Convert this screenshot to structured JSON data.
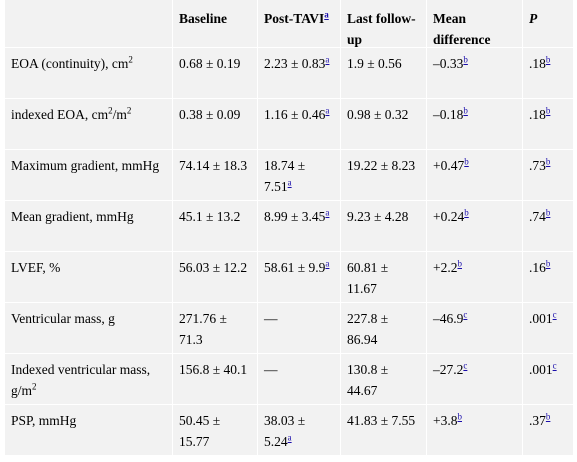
{
  "headers": [
    "",
    "Baseline",
    "Post-TAVI",
    "Last follow-up",
    "Mean difference",
    "P"
  ],
  "header_post_tavi_note": "a",
  "rows": [
    {
      "label": "EOA (continuity), cm",
      "label_sup": "2",
      "label_after": "",
      "baseline": "0.68 ± 0.19",
      "post": "2.23 ± 0.83",
      "post_note": "a",
      "last": "1.9 ± 0.56",
      "diff": "–0.33",
      "diff_note": "b",
      "p": ".18",
      "p_note": "b"
    },
    {
      "label": "indexed EOA, cm",
      "label_sup": "2",
      "label_after": "/m",
      "label_sup2": "2",
      "baseline": "0.38 ± 0.09",
      "post": "1.16 ± 0.46",
      "post_note": "a",
      "last": "0.98 ± 0.32",
      "diff": "–0.18",
      "diff_note": "b",
      "p": ".18",
      "p_note": "b"
    },
    {
      "label": "Maximum gradient, mmHg",
      "baseline": "74.14 ± 18.3",
      "post": "18.74 ± 7.51",
      "post_note": "a",
      "last": "19.22 ± 8.23",
      "diff": "+0.47",
      "diff_note": "b",
      "p": ".73",
      "p_note": "b"
    },
    {
      "label": "Mean gradient, mmHg",
      "baseline": "45.1 ± 13.2",
      "post": "8.99 ± 3.45",
      "post_note": "a",
      "last": "9.23 ± 4.28",
      "diff": "+0.24",
      "diff_note": "b",
      "p": ".74",
      "p_note": "b"
    },
    {
      "label": "LVEF, %",
      "baseline": "56.03 ± 12.2",
      "post": "58.61 ± 9.9",
      "post_note": "a",
      "last": "60.81 ± 11.67",
      "diff": "+2.2",
      "diff_note": "b",
      "p": ".16",
      "p_note": "b"
    },
    {
      "label": "Ventricular mass, g",
      "baseline": "271.76 ± 71.3",
      "post": "—",
      "post_note": "",
      "last": "227.8 ± 86.94",
      "diff": "–46.9",
      "diff_note": "c",
      "p": ".001",
      "p_note": "c"
    },
    {
      "label": "Indexed ventricular mass, g/m",
      "label_sup": "2",
      "baseline": "156.8 ± 40.1",
      "post": "—",
      "post_note": "",
      "last": "130.8 ± 44.67",
      "diff": "–27.2",
      "diff_note": "c",
      "p": ".001",
      "p_note": "c"
    },
    {
      "label": "PSP, mmHg",
      "baseline": "50.45 ± 15.77",
      "post": "38.03 ± 5.24",
      "post_note": "a",
      "last": "41.83 ± 7.55",
      "diff": "+3.8",
      "diff_note": "b",
      "p": ".37",
      "p_note": "b"
    }
  ]
}
